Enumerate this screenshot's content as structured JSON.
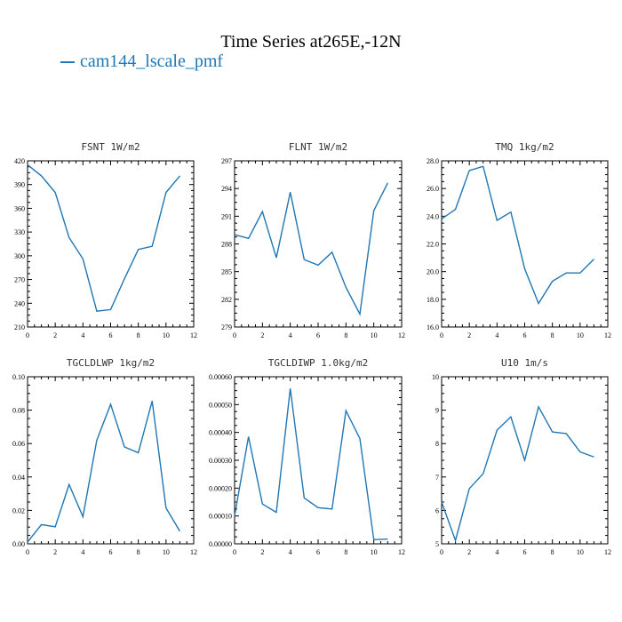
{
  "figure": {
    "title": "Time Series at265E,-12N",
    "legend": {
      "label": "cam144_lscale_pmf",
      "color": "#1f77b4"
    }
  },
  "chart_data": [
    {
      "type": "line",
      "title": "FSNT  1W/m2",
      "x": [
        0,
        1,
        2,
        3,
        4,
        5,
        6,
        7,
        8,
        9,
        10,
        11
      ],
      "series": [
        {
          "name": "cam144_lscale_pmf",
          "values": [
            415,
            401,
            380,
            323,
            296,
            230,
            232,
            271,
            308,
            312,
            380,
            401
          ]
        }
      ],
      "xlim": [
        0,
        12
      ],
      "xticks": [
        "0",
        "2",
        "4",
        "6",
        "8",
        "10",
        "12"
      ],
      "ylim": [
        210,
        420
      ],
      "yticks": [
        "210",
        "240",
        "270",
        "300",
        "330",
        "360",
        "390",
        "420"
      ],
      "grid": false
    },
    {
      "type": "line",
      "title": "FLNT  1W/m2",
      "x": [
        0,
        1,
        2,
        3,
        4,
        5,
        6,
        7,
        8,
        9,
        10,
        11
      ],
      "series": [
        {
          "name": "cam144_lscale_pmf",
          "values": [
            289.0,
            288.6,
            291.5,
            286.5,
            293.6,
            286.3,
            285.7,
            287.1,
            283.3,
            280.4,
            291.6,
            294.6
          ]
        }
      ],
      "xlim": [
        0,
        12
      ],
      "xticks": [
        "0",
        "2",
        "4",
        "6",
        "8",
        "10",
        "12"
      ],
      "ylim": [
        279,
        297
      ],
      "yticks": [
        "279",
        "282",
        "285",
        "288",
        "291",
        "294",
        "297"
      ],
      "grid": false
    },
    {
      "type": "line",
      "title": "TMQ  1kg/m2",
      "x": [
        0,
        1,
        2,
        3,
        4,
        5,
        6,
        7,
        8,
        9,
        10,
        11
      ],
      "series": [
        {
          "name": "cam144_lscale_pmf",
          "values": [
            23.8,
            24.5,
            27.3,
            27.6,
            23.7,
            24.3,
            20.2,
            17.7,
            19.3,
            19.9,
            19.9,
            20.9
          ]
        }
      ],
      "xlim": [
        0,
        12
      ],
      "xticks": [
        "0",
        "2",
        "4",
        "6",
        "8",
        "10",
        "12"
      ],
      "ylim": [
        16,
        28
      ],
      "yticks": [
        "16.0",
        "18.0",
        "20.0",
        "22.0",
        "24.0",
        "26.0",
        "28.0"
      ],
      "grid": false
    },
    {
      "type": "line",
      "title": "TGCLDLWP  1kg/m2",
      "x": [
        0,
        1,
        2,
        3,
        4,
        5,
        6,
        7,
        8,
        9,
        10,
        11
      ],
      "series": [
        {
          "name": "cam144_lscale_pmf",
          "values": [
            0.001,
            0.0115,
            0.0102,
            0.0355,
            0.0162,
            0.062,
            0.0835,
            0.058,
            0.0545,
            0.0855,
            0.0215,
            0.0075
          ]
        }
      ],
      "xlim": [
        0,
        12
      ],
      "xticks": [
        "0",
        "2",
        "4",
        "6",
        "8",
        "10",
        "12"
      ],
      "ylim": [
        0,
        0.1
      ],
      "yticks": [
        "0.00",
        "0.02",
        "0.04",
        "0.06",
        "0.08",
        "0.10"
      ],
      "grid": false
    },
    {
      "type": "line",
      "title": "TGCLDIWP  1.0kg/m2",
      "x": [
        0,
        1,
        2,
        3,
        4,
        5,
        6,
        7,
        8,
        9,
        10,
        11
      ],
      "series": [
        {
          "name": "cam144_lscale_pmf",
          "values": [
            0.0001,
            0.000385,
            0.000143,
            0.000113,
            0.000558,
            0.000165,
            0.00013,
            0.000125,
            0.000478,
            0.000378,
            1.5e-05,
            1.7e-05
          ]
        }
      ],
      "xlim": [
        0,
        12
      ],
      "xticks": [
        "0",
        "2",
        "4",
        "6",
        "8",
        "10",
        "12"
      ],
      "ylim": [
        0,
        0.0006
      ],
      "yticks": [
        "0.00000",
        "0.00010",
        "0.00020",
        "0.00030",
        "0.00040",
        "0.00050",
        "0.00060"
      ],
      "grid": false
    },
    {
      "type": "line",
      "title": "U10  1m/s",
      "x": [
        0,
        1,
        2,
        3,
        4,
        5,
        6,
        7,
        8,
        9,
        10,
        11
      ],
      "series": [
        {
          "name": "cam144_lscale_pmf",
          "values": [
            6.25,
            5.1,
            6.65,
            7.1,
            8.4,
            8.8,
            7.5,
            9.1,
            8.35,
            8.3,
            7.75,
            7.6
          ]
        }
      ],
      "xlim": [
        0,
        12
      ],
      "xticks": [
        "0",
        "2",
        "4",
        "6",
        "8",
        "10",
        "12"
      ],
      "ylim": [
        5,
        10
      ],
      "yticks": [
        "5",
        "6",
        "7",
        "8",
        "9",
        "10"
      ],
      "grid": false
    }
  ]
}
